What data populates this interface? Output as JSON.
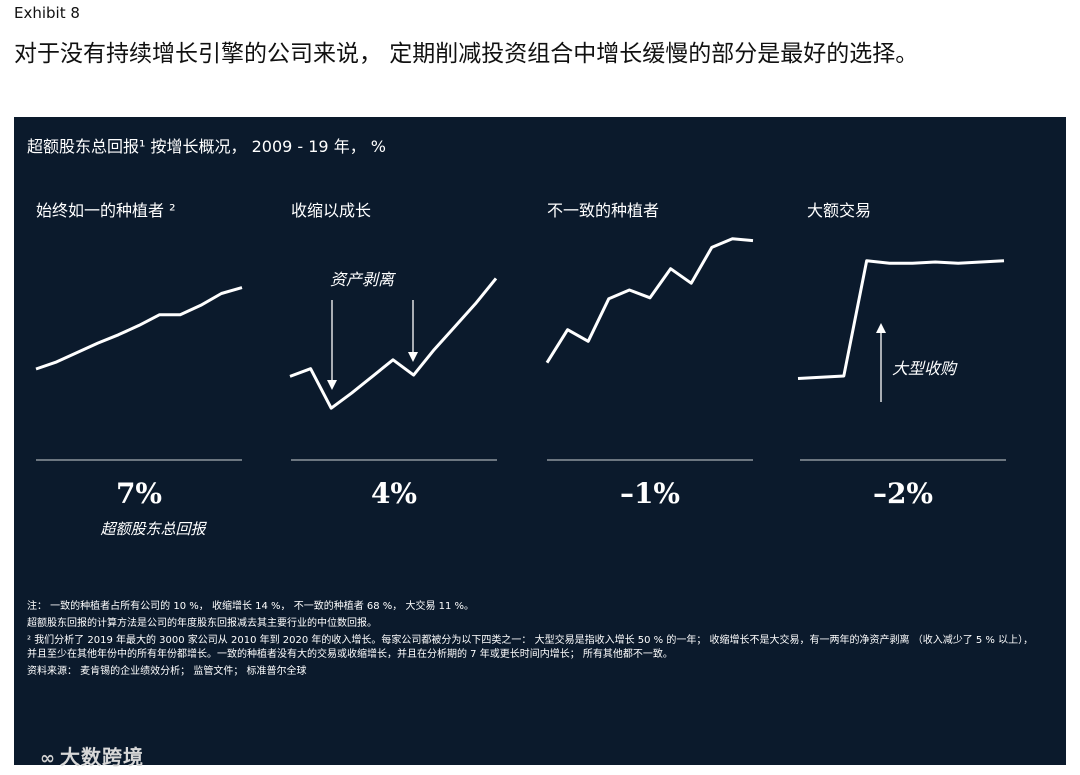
{
  "header": {
    "exhibit": "Exhibit 8",
    "headline": "对于没有持续增长引擎的公司来说， 定期削减投资组合中增长缓慢的部分是最好的选择。"
  },
  "panel": {
    "title": "超额股东总回报¹ 按增长概况， 2009 - 19 年， %",
    "background": "#0b1a2c"
  },
  "chart_data": [
    {
      "type": "line",
      "title": "始终如一的种植者 ²",
      "x": [
        0,
        1,
        2,
        3,
        4,
        5,
        6,
        7,
        8,
        9,
        10
      ],
      "y": [
        11,
        17,
        25,
        33,
        40,
        48,
        57,
        57,
        65,
        75,
        80
      ],
      "ylim": [
        0,
        100
      ],
      "summary_value": "7%",
      "summary_label": "超额股东总回报"
    },
    {
      "type": "line",
      "title": "收缩以成长",
      "x": [
        0,
        1,
        2,
        3,
        4,
        5,
        6,
        7,
        8,
        9,
        10
      ],
      "y": [
        28,
        34,
        3,
        15,
        28,
        41,
        29,
        49,
        67,
        85,
        105
      ],
      "ylim": [
        0,
        110
      ],
      "annotations": [
        {
          "text": "资产剥离"
        }
      ],
      "summary_value": "4%"
    },
    {
      "type": "line",
      "title": "不一致的种植者",
      "x": [
        0,
        1,
        2,
        3,
        4,
        5,
        6,
        7,
        8,
        9,
        10
      ],
      "y": [
        21,
        55,
        43,
        87,
        96,
        88,
        118,
        103,
        140,
        149,
        147
      ],
      "ylim": [
        0,
        160
      ],
      "summary_value": "–1%"
    },
    {
      "type": "line",
      "title": "大额交易",
      "x": [
        0,
        1,
        2,
        3,
        4,
        5,
        6,
        7,
        8,
        9
      ],
      "y": [
        2,
        3,
        4,
        97,
        95,
        95,
        96,
        95,
        96,
        97
      ],
      "ylim": [
        0,
        100
      ],
      "annotations": [
        {
          "text": "大型收购"
        }
      ],
      "summary_value": "–2%"
    }
  ],
  "notes": {
    "n1": "注： 一致的种植者占所有公司的 10 %， 收缩增长 14 %， 不一致的种植者 68 %， 大交易 11 %。",
    "n2": "超额股东回报的计算方法是公司的年度股东回报减去其主要行业的中位数回报。",
    "n3": "² 我们分析了 2019 年最大的 3000 家公司从 2010 年到 2020 年的收入增长。每家公司都被分为以下四类之一： 大型交易是指收入增长 50 % 的一年； 收缩增长不是大交易，有一两年的净资产剥离 （收入减少了 5 % 以上）， 并且至少在其他年份中的所有年份都增长。一致的种植者没有大的交易或收缩增长，并且在分析期的 7 年或更长时间内增长； 所有其他都不一致。",
    "n4": "资料来源： 麦肯锡的企业绩效分析； 监管文件； 标准普尔全球"
  },
  "watermark": {
    "text": "大数跨境"
  }
}
